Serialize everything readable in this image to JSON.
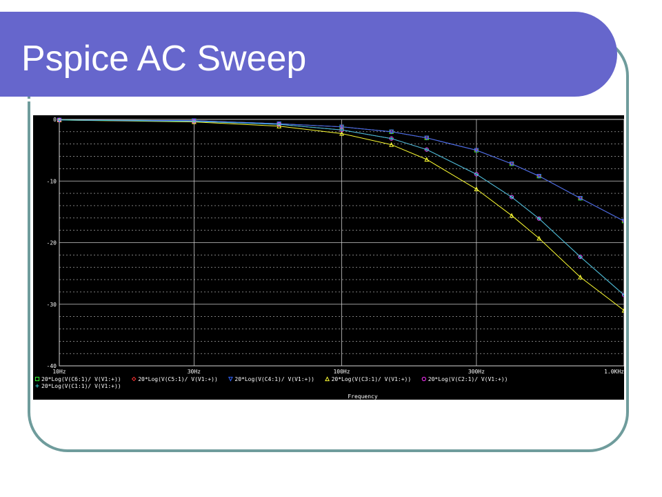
{
  "slide": {
    "title": "Pspice AC Sweep",
    "colors": {
      "banner": "#6666cc",
      "frame": "#6f9c9c",
      "plot_bg": "#000000"
    }
  },
  "chart_data": {
    "type": "line",
    "title": "",
    "xlabel": "Frequency",
    "ylabel": "",
    "x_scale": "log",
    "xlim": [
      10,
      1000
    ],
    "ylim": [
      -40,
      0
    ],
    "grid": true,
    "legend_placement": "bottom",
    "x_ticks": [
      {
        "value": 10,
        "label": "10Hz"
      },
      {
        "value": 30,
        "label": "30Hz"
      },
      {
        "value": 100,
        "label": "100Hz"
      },
      {
        "value": 300,
        "label": "300Hz"
      },
      {
        "value": 1000,
        "label": "1.0KHz"
      }
    ],
    "y_ticks": [
      {
        "value": 0,
        "label": "0"
      },
      {
        "value": -10,
        "label": "-10"
      },
      {
        "value": -20,
        "label": "-20"
      },
      {
        "value": -30,
        "label": "-30"
      },
      {
        "value": -40,
        "label": "-40"
      }
    ],
    "x": [
      10,
      30,
      60,
      100,
      150,
      200,
      300,
      400,
      500,
      700,
      1000
    ],
    "series": [
      {
        "name": "20*Log(V(C6:1)/ V(V1:+))",
        "color": "#33ff33",
        "marker": "square",
        "values": [
          -0.1,
          -0.2,
          -0.7,
          -1.2,
          -2.0,
          -3.0,
          -5.0,
          -7.2,
          -9.2,
          -12.8,
          -16.5
        ]
      },
      {
        "name": "20*Log(V(C5:1)/ V(V1:+))",
        "color": "#ff3333",
        "marker": "diamond",
        "values": [
          -0.1,
          -0.2,
          -0.7,
          -1.2,
          -2.0,
          -3.0,
          -5.0,
          -7.2,
          -9.2,
          -12.8,
          -16.5
        ]
      },
      {
        "name": "20*Log(V(C4:1)/ V(V1:+))",
        "color": "#3366ff",
        "marker": "triangle-down",
        "values": [
          -0.1,
          -0.2,
          -0.7,
          -1.2,
          -2.0,
          -3.0,
          -5.0,
          -7.2,
          -9.2,
          -12.8,
          -16.5
        ]
      },
      {
        "name": "20*Log(V(C3:1)/ V(V1:+))",
        "color": "#ffff33",
        "marker": "triangle-up",
        "values": [
          -0.1,
          -0.4,
          -1.1,
          -2.3,
          -4.1,
          -6.5,
          -11.3,
          -15.6,
          -19.3,
          -25.6,
          -31.0
        ]
      },
      {
        "name": "20*Log(V(C2:1)/ V(V1:+))",
        "color": "#ff33ff",
        "marker": "circle",
        "values": [
          -0.1,
          -0.3,
          -0.8,
          -1.7,
          -3.1,
          -4.9,
          -8.9,
          -12.6,
          -16.1,
          -22.3,
          -28.5
        ]
      },
      {
        "name": "20*Log(V(C1:1)/ V(V1:+))",
        "color": "#33cccc",
        "marker": "plus",
        "values": [
          -0.1,
          -0.3,
          -0.8,
          -1.7,
          -3.1,
          -4.9,
          -8.9,
          -12.6,
          -16.1,
          -22.3,
          -28.5
        ]
      }
    ]
  }
}
